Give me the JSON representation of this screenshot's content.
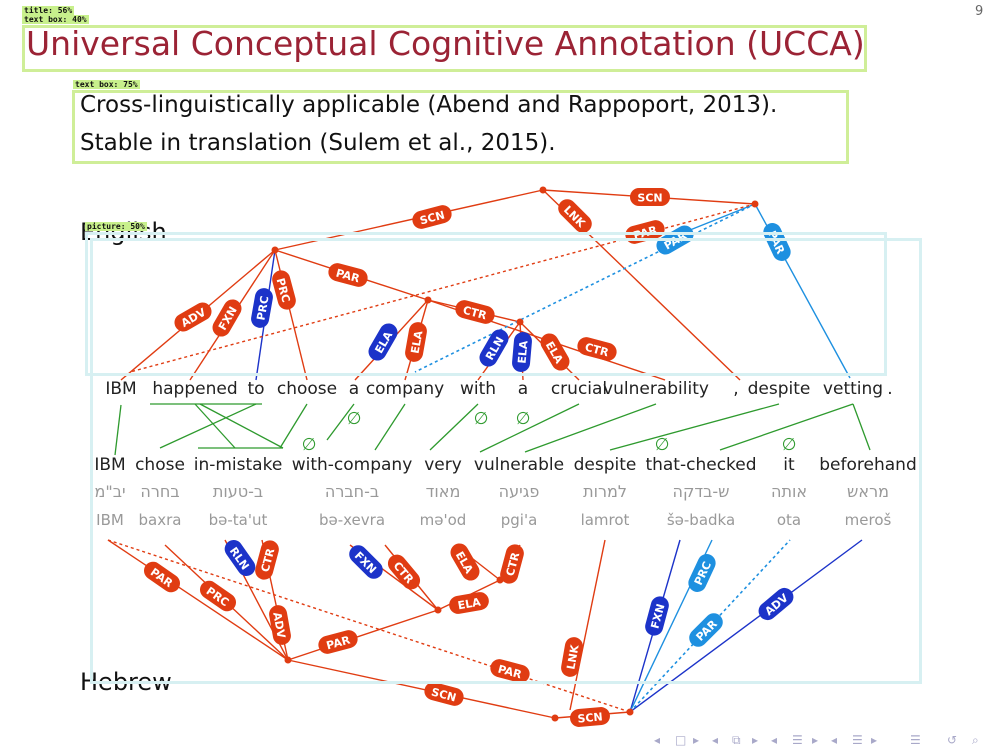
{
  "page_number": "9",
  "title": "Universal Conceptual Cognitive Annotation (UCCA)",
  "bullets": [
    "Cross-linguistically applicable (Abend and Rappoport, 2013).",
    "Stable in translation (Sulem et al., 2015)."
  ],
  "lang_labels": {
    "english": "English",
    "hebrew": "Hebrew"
  },
  "detection_tags": {
    "title": "title: 56%",
    "text1": "text box: 40%",
    "text2": "text box: 75%",
    "picture": "picture: 50%"
  },
  "colors": {
    "title": "#9b2335",
    "edge_red": "#e03c12",
    "edge_blue": "#1c33c9",
    "edge_lightblue": "#1e90e0",
    "align_green": "#2e9a2e"
  },
  "english_tokens": [
    "IBM",
    "happened",
    "to",
    "choose",
    "a",
    "company",
    "with",
    "a",
    "crucial",
    "vulnerability",
    ",",
    "despite",
    "vetting",
    "."
  ],
  "gloss_tokens": [
    "IBM",
    "chose",
    "in-mistake",
    "with-company",
    "very",
    "vulnerable",
    "despite",
    "that-checked",
    "it",
    "beforehand"
  ],
  "hebrew_tokens": [
    "יב\"מ",
    "בחרה",
    "ב-טעות",
    "ב-חברה",
    "מאוד",
    "פגיעה",
    "למרות",
    "ש-בדקה",
    "אותה",
    "מראש"
  ],
  "translit_tokens": [
    "IBM",
    "baxra",
    "bə-ta'ut",
    "bə-xevra",
    "mə'od",
    "pgi'a",
    "lamrot",
    "šə-badka",
    "ota",
    "meroš"
  ],
  "empty_marker": "∅",
  "english_labels": [
    "SCN",
    "SCN",
    "LNK",
    "PAR",
    "PAR",
    "PRC",
    "PAR",
    "PAR",
    "ADV",
    "FXN",
    "PRC",
    "ELA",
    "CTR",
    "ELA",
    "RLN",
    "ELA",
    "ELA",
    "CTR"
  ],
  "hebrew_labels": [
    "PAR",
    "PRC",
    "RLN",
    "CTR",
    "ADV",
    "FXN",
    "CTR",
    "ELA",
    "CTR",
    "ELA",
    "PAR",
    "LNK",
    "PAR",
    "SCN",
    "SCN",
    "FXN",
    "PRC",
    "PAR",
    "ADV"
  ],
  "nav_icons": [
    "nav-prev-icon",
    "nav-frame-icon",
    "nav-next-icon",
    "nav-section-prev-icon",
    "nav-section-icon",
    "nav-section-next-icon",
    "nav-sub-prev-icon",
    "nav-sub-icon",
    "nav-sub-next-icon",
    "nav-doc-prev-icon",
    "nav-doc-icon",
    "nav-doc-next-icon",
    "nav-menu-icon",
    "nav-back-icon",
    "nav-search-icon"
  ]
}
